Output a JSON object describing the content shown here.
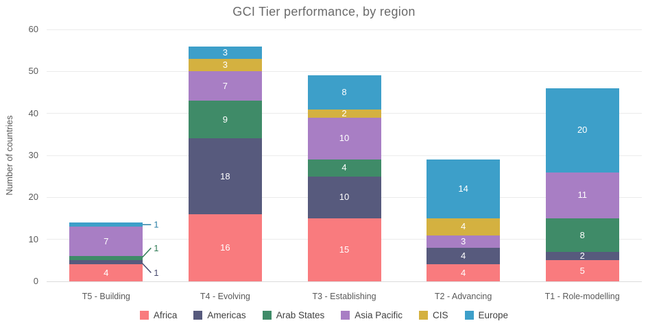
{
  "chart_data": {
    "type": "bar",
    "stacked": true,
    "title": "GCI Tier performance, by region",
    "xlabel": "",
    "ylabel": "Number of countries",
    "ylim": [
      0,
      60
    ],
    "yticks": [
      0,
      10,
      20,
      30,
      40,
      50,
      60
    ],
    "grid": true,
    "legend_position": "bottom",
    "categories": [
      "T5 - Building",
      "T4 - Evolving",
      "T3 - Establishing",
      "T2 - Advancing",
      "T1 - Role-modelling"
    ],
    "series": [
      {
        "name": "Africa",
        "color": "#f97b7e",
        "values": [
          4,
          16,
          15,
          4,
          5
        ]
      },
      {
        "name": "Americas",
        "color": "#575a7d",
        "values": [
          1,
          18,
          10,
          4,
          2
        ]
      },
      {
        "name": "Arab States",
        "color": "#3f8b68",
        "values": [
          1,
          9,
          4,
          0,
          8
        ]
      },
      {
        "name": "Asia Pacific",
        "color": "#a87ec4",
        "values": [
          7,
          7,
          10,
          3,
          11
        ]
      },
      {
        "name": "CIS",
        "color": "#d4b140",
        "values": [
          0,
          3,
          2,
          4,
          0
        ]
      },
      {
        "name": "Europe",
        "color": "#3d9fc9",
        "values": [
          1,
          3,
          8,
          14,
          20
        ]
      }
    ],
    "callouts": [
      {
        "category_index": 0,
        "series": "Europe",
        "value": 1,
        "color": "#2b7fa6",
        "dy": 0
      },
      {
        "category_index": 0,
        "series": "Arab States",
        "value": 1,
        "color": "#2f7b56",
        "dy": -15
      },
      {
        "category_index": 0,
        "series": "Americas",
        "value": 1,
        "color": "#474a6f",
        "dy": 15
      }
    ]
  }
}
